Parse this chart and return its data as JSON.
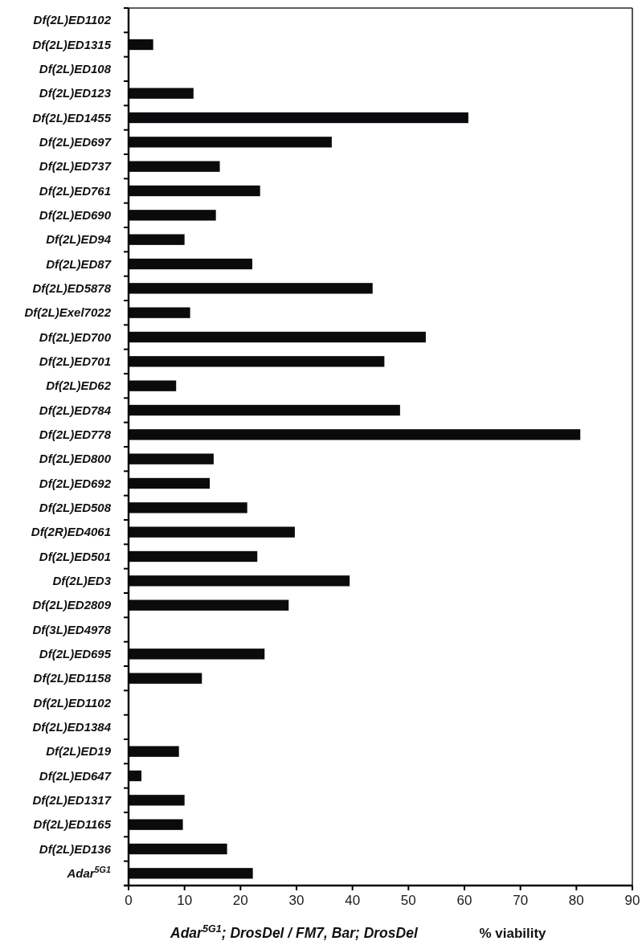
{
  "chart_data": {
    "type": "bar",
    "orientation": "horizontal",
    "categories": [
      "Df(2L)ED1102",
      "Df(2L)ED1315",
      "Df(2L)ED108",
      "Df(2L)ED123",
      "Df(2L)ED1455",
      "Df(2L)ED697",
      "Df(2L)ED737",
      "Df(2L)ED761",
      "Df(2L)ED690",
      "Df(2L)ED94",
      "Df(2L)ED87",
      "Df(2L)ED5878",
      "Df(2L)Exel7022",
      "Df(2L)ED700",
      "Df(2L)ED701",
      "Df(2L)ED62",
      "Df(2L)ED784",
      "Df(2L)ED778",
      "Df(2L)ED800",
      "Df(2L)ED692",
      "Df(2L)ED508",
      "Df(2R)ED4061",
      "Df(2L)ED501",
      "Df(2L)ED3",
      "Df(2L)ED2809",
      "Df(3L)ED4978",
      "Df(2L)ED695",
      "Df(2L)ED1158",
      "Df(2L)ED1102",
      "Df(2L)ED1384",
      "Df(2L)ED19",
      "Df(2L)ED647",
      "Df(2L)ED1317",
      "Df(2L)ED1165",
      "Df(2L)ED136",
      "Adar$^{5G1}$"
    ],
    "values": [
      0,
      4.4,
      0,
      11.6,
      60.7,
      36.3,
      16.3,
      23.5,
      15.6,
      10.0,
      22.1,
      43.6,
      11.0,
      53.1,
      45.7,
      8.5,
      48.5,
      80.7,
      15.2,
      14.5,
      21.2,
      29.7,
      23.0,
      39.5,
      28.6,
      0,
      24.3,
      13.1,
      0,
      0,
      9.0,
      2.3,
      10.0,
      9.7,
      17.6,
      22.2
    ],
    "color": "#0b0b0d",
    "xlim": [
      0,
      90
    ],
    "xticks": [
      0,
      10,
      20,
      30,
      40,
      50,
      60,
      70,
      80,
      90
    ],
    "xlabel": "% viability",
    "annotations": [
      "Adar$^{5G1}$; DrosDel / FM7, Bar; DrosDel"
    ]
  }
}
